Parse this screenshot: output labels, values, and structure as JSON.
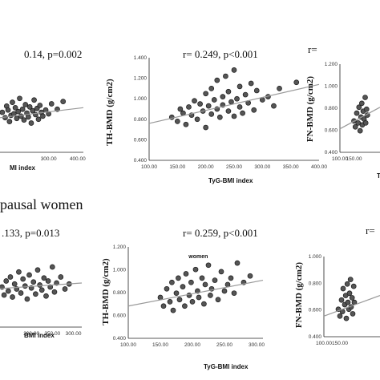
{
  "section_heading": "pausal women",
  "chart_data": [
    {
      "type": "scatter",
      "stat": "0.14, p=0.002",
      "xlabel": "MI index",
      "ylabel": "",
      "xticks": [
        "300.00",
        "400.00"
      ],
      "yticks": [],
      "xlim": [
        110,
        420
      ],
      "ylim": [
        0.4,
        1.4
      ],
      "trend": [
        [
          110,
          0.84
        ],
        [
          420,
          0.98
        ]
      ],
      "points": [
        [
          140,
          0.92
        ],
        [
          150,
          0.85
        ],
        [
          155,
          1.0
        ],
        [
          160,
          0.95
        ],
        [
          165,
          0.8
        ],
        [
          170,
          0.88
        ],
        [
          175,
          1.05
        ],
        [
          180,
          0.9
        ],
        [
          185,
          0.98
        ],
        [
          190,
          0.84
        ],
        [
          195,
          0.93
        ],
        [
          200,
          1.1
        ],
        [
          205,
          0.87
        ],
        [
          210,
          0.96
        ],
        [
          215,
          0.82
        ],
        [
          220,
          1.02
        ],
        [
          225,
          0.91
        ],
        [
          230,
          0.86
        ],
        [
          235,
          0.99
        ],
        [
          240,
          0.78
        ],
        [
          245,
          0.94
        ],
        [
          250,
          1.08
        ],
        [
          255,
          0.89
        ],
        [
          260,
          0.97
        ],
        [
          265,
          0.83
        ],
        [
          270,
          1.01
        ],
        [
          275,
          0.92
        ],
        [
          280,
          0.87
        ],
        [
          290,
          0.95
        ],
        [
          300,
          0.9
        ],
        [
          310,
          1.03
        ],
        [
          330,
          0.96
        ],
        [
          350,
          1.06
        ]
      ]
    },
    {
      "type": "scatter",
      "stat": "r= 0.249,  p<0.001",
      "xlabel": "TyG-BMI index",
      "ylabel": "TH-BMD (g/cm2)",
      "xticks": [
        "100.00",
        "150.00",
        "200.00",
        "250.00",
        "300.00",
        "350.00",
        "400.00"
      ],
      "yticks": [
        "1.400",
        "1.200",
        "1.000",
        "0.800",
        "0.600",
        "0.400"
      ],
      "xlim": [
        100,
        400
      ],
      "ylim": [
        0.4,
        1.4
      ],
      "trend": [
        [
          100,
          0.76
        ],
        [
          400,
          1.14
        ]
      ],
      "points": [
        [
          140,
          0.82
        ],
        [
          150,
          0.78
        ],
        [
          155,
          0.9
        ],
        [
          160,
          0.86
        ],
        [
          165,
          0.75
        ],
        [
          170,
          0.92
        ],
        [
          175,
          0.84
        ],
        [
          180,
          0.98
        ],
        [
          185,
          0.8
        ],
        [
          190,
          0.95
        ],
        [
          195,
          0.88
        ],
        [
          200,
          1.05
        ],
        [
          200,
          0.72
        ],
        [
          205,
          0.93
        ],
        [
          210,
          1.1
        ],
        [
          210,
          0.85
        ],
        [
          215,
          0.99
        ],
        [
          220,
          0.9
        ],
        [
          220,
          1.18
        ],
        [
          225,
          0.82
        ],
        [
          230,
          1.02
        ],
        [
          230,
          0.94
        ],
        [
          235,
          1.22
        ],
        [
          240,
          0.88
        ],
        [
          240,
          1.07
        ],
        [
          245,
          0.97
        ],
        [
          250,
          1.28
        ],
        [
          250,
          0.83
        ],
        [
          255,
          1.0
        ],
        [
          260,
          0.92
        ],
        [
          260,
          1.12
        ],
        [
          265,
          0.86
        ],
        [
          270,
          1.04
        ],
        [
          275,
          0.96
        ],
        [
          280,
          1.15
        ],
        [
          285,
          0.89
        ],
        [
          290,
          1.08
        ],
        [
          300,
          0.99
        ],
        [
          310,
          1.02
        ],
        [
          320,
          0.93
        ],
        [
          330,
          1.1
        ],
        [
          360,
          1.16
        ]
      ]
    },
    {
      "type": "scatter",
      "stat": "r=",
      "xlabel": "Ty",
      "ylabel": "FN-BMD (g/cm2)",
      "xticks": [
        "100.00",
        "150.00"
      ],
      "yticks": [
        "1.200",
        "1.000",
        "0.800",
        "0.600",
        "0.400"
      ],
      "xlim": [
        100,
        300
      ],
      "ylim": [
        0.4,
        1.3
      ],
      "trend": [
        [
          100,
          0.64
        ],
        [
          300,
          0.86
        ]
      ],
      "points": [
        [
          150,
          0.72
        ],
        [
          155,
          0.66
        ],
        [
          160,
          0.8
        ],
        [
          165,
          0.7
        ],
        [
          168,
          0.86
        ],
        [
          172,
          0.62
        ],
        [
          175,
          0.76
        ],
        [
          178,
          0.9
        ],
        [
          180,
          0.68
        ],
        [
          183,
          0.82
        ],
        [
          186,
          0.74
        ],
        [
          190,
          0.96
        ],
        [
          192,
          0.7
        ],
        [
          195,
          0.84
        ],
        [
          198,
          0.78
        ]
      ]
    },
    {
      "type": "scatter",
      "stat": ".133, p=0.013",
      "xlabel": "BMI index",
      "ylabel": "",
      "xticks": [
        "200.00",
        "250.00",
        "300.00"
      ],
      "yticks": [],
      "xlim": [
        110,
        320
      ],
      "ylim": [
        0.4,
        1.2
      ],
      "trend": [
        [
          110,
          0.78
        ],
        [
          320,
          0.84
        ]
      ],
      "points": [
        [
          130,
          0.8
        ],
        [
          135,
          0.72
        ],
        [
          140,
          0.86
        ],
        [
          145,
          0.76
        ],
        [
          150,
          0.9
        ],
        [
          155,
          0.7
        ],
        [
          160,
          0.83
        ],
        [
          165,
          0.78
        ],
        [
          170,
          0.95
        ],
        [
          175,
          0.74
        ],
        [
          180,
          0.88
        ],
        [
          185,
          0.81
        ],
        [
          190,
          0.68
        ],
        [
          195,
          0.92
        ],
        [
          200,
          0.79
        ],
        [
          205,
          0.85
        ],
        [
          210,
          0.73
        ],
        [
          215,
          0.97
        ],
        [
          220,
          0.82
        ],
        [
          225,
          0.77
        ],
        [
          230,
          0.89
        ],
        [
          235,
          0.71
        ],
        [
          240,
          0.86
        ],
        [
          245,
          0.8
        ],
        [
          250,
          1.0
        ],
        [
          255,
          0.75
        ],
        [
          260,
          0.84
        ],
        [
          270,
          0.9
        ],
        [
          280,
          0.78
        ],
        [
          290,
          0.83
        ]
      ]
    },
    {
      "type": "scatter",
      "stat": "r= 0.259, p<0.001",
      "xlabel": "TyG-BMI index",
      "ylabel": "TH-BMD  (g/cm2)",
      "inner_title": "women",
      "xticks": [
        "100.00",
        "150.00",
        "200.00",
        "250.00",
        "300.00"
      ],
      "yticks": [
        "1.200",
        "1.000",
        "0.800",
        "0.600",
        "0.400"
      ],
      "xlim": [
        100,
        310
      ],
      "ylim": [
        0.4,
        1.25
      ],
      "trend": [
        [
          100,
          0.7
        ],
        [
          310,
          0.94
        ]
      ],
      "points": [
        [
          150,
          0.78
        ],
        [
          155,
          0.7
        ],
        [
          160,
          0.86
        ],
        [
          165,
          0.74
        ],
        [
          168,
          0.92
        ],
        [
          170,
          0.66
        ],
        [
          175,
          0.82
        ],
        [
          178,
          0.96
        ],
        [
          180,
          0.76
        ],
        [
          185,
          0.88
        ],
        [
          188,
          0.7
        ],
        [
          190,
          1.0
        ],
        [
          195,
          0.8
        ],
        [
          198,
          0.92
        ],
        [
          200,
          0.74
        ],
        [
          205,
          1.04
        ],
        [
          208,
          0.84
        ],
        [
          210,
          0.78
        ],
        [
          215,
          0.96
        ],
        [
          218,
          0.72
        ],
        [
          220,
          0.9
        ],
        [
          225,
          1.08
        ],
        [
          228,
          0.8
        ],
        [
          230,
          0.86
        ],
        [
          235,
          0.94
        ],
        [
          240,
          0.76
        ],
        [
          245,
          1.02
        ],
        [
          250,
          0.84
        ],
        [
          255,
          0.9
        ],
        [
          260,
          0.96
        ],
        [
          265,
          0.82
        ],
        [
          270,
          1.1
        ],
        [
          280,
          0.92
        ],
        [
          290,
          0.98
        ]
      ]
    },
    {
      "type": "scatter",
      "stat": "r=",
      "xlabel": "",
      "ylabel": "FN-BMD (g/cm2)",
      "xticks": [
        "100.00",
        "150.00"
      ],
      "yticks": [
        "1.000",
        "0.800",
        "0.600",
        "0.400"
      ],
      "xlim": [
        100,
        300
      ],
      "ylim": [
        0.4,
        1.1
      ],
      "trend": [
        [
          100,
          0.58
        ],
        [
          300,
          0.76
        ]
      ],
      "points": [
        [
          145,
          0.64
        ],
        [
          150,
          0.58
        ],
        [
          155,
          0.72
        ],
        [
          158,
          0.62
        ],
        [
          160,
          0.82
        ],
        [
          165,
          0.68
        ],
        [
          168,
          0.76
        ],
        [
          170,
          0.56
        ],
        [
          173,
          0.86
        ],
        [
          175,
          0.7
        ],
        [
          178,
          0.64
        ],
        [
          180,
          0.78
        ],
        [
          183,
          0.9
        ],
        [
          185,
          0.66
        ],
        [
          188,
          0.74
        ],
        [
          190,
          0.6
        ],
        [
          193,
          0.84
        ],
        [
          195,
          0.7
        ]
      ]
    }
  ]
}
